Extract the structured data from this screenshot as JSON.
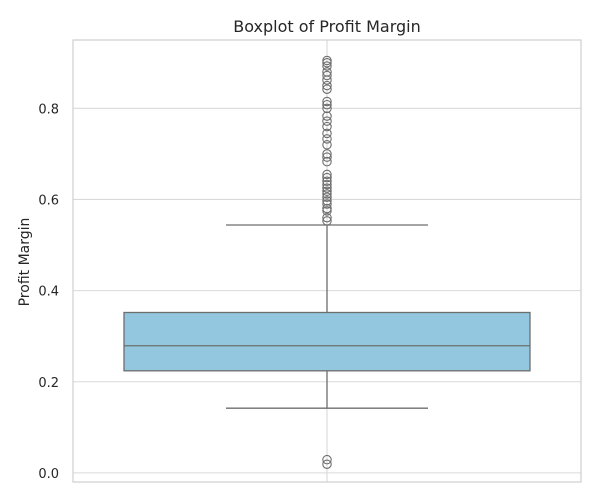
{
  "chart_data": {
    "type": "boxplot",
    "title": "Boxplot of Profit Margin",
    "xlabel": "",
    "ylabel": "Profit Margin",
    "ylim": [
      -0.02,
      0.95
    ],
    "yticks": [
      0.0,
      0.2,
      0.4,
      0.6,
      0.8
    ],
    "ytick_labels": [
      "0.0",
      "0.2",
      "0.4",
      "0.6",
      "0.8"
    ],
    "grid": true,
    "box_color": "#92c7df",
    "edge_color": "#6e6e6e",
    "grid_color": "#d9d9d9",
    "series": [
      {
        "whisker_low": 0.142,
        "q1": 0.224,
        "median": 0.279,
        "q3": 0.352,
        "whisker_high": 0.544,
        "outliers": [
          0.019,
          0.029,
          0.553,
          0.56,
          0.575,
          0.58,
          0.59,
          0.597,
          0.605,
          0.612,
          0.618,
          0.625,
          0.633,
          0.64,
          0.648,
          0.655,
          0.683,
          0.693,
          0.7,
          0.72,
          0.733,
          0.745,
          0.76,
          0.772,
          0.783,
          0.8,
          0.808,
          0.815,
          0.842,
          0.85,
          0.862,
          0.872,
          0.88,
          0.893,
          0.9,
          0.905
        ]
      }
    ]
  }
}
